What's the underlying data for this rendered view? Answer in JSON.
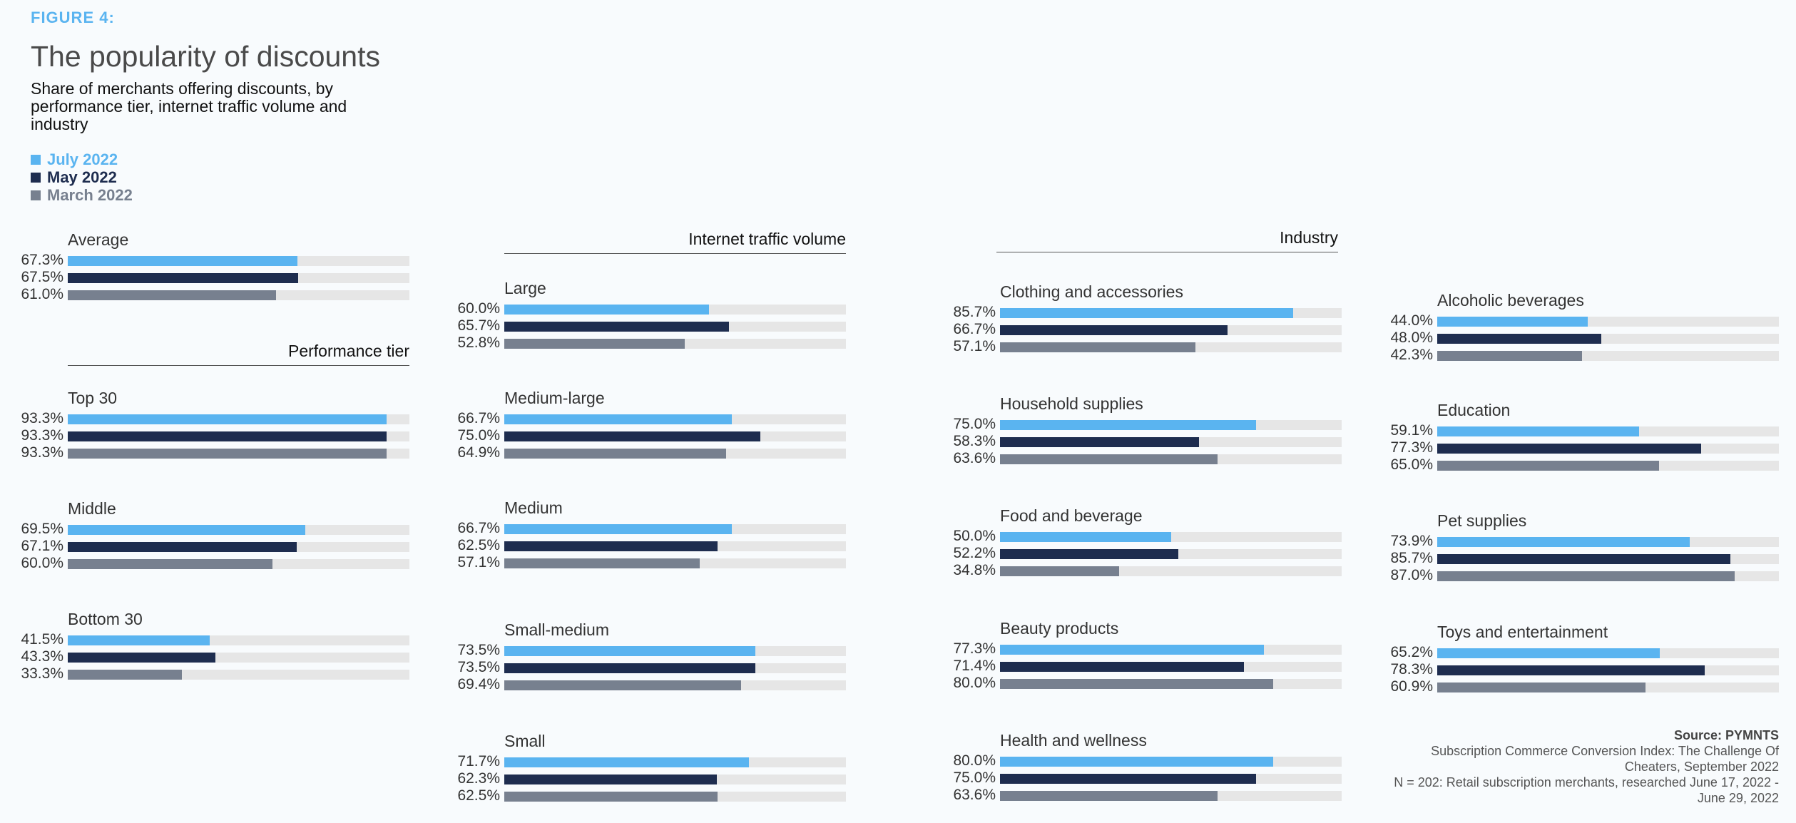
{
  "figure_label": "FIGURE 4:",
  "title": "The popularity of discounts",
  "subtitle": "Share of merchants offering discounts, by performance tier, internet traffic volume and industry",
  "colors": {
    "july": "#5ab4f0",
    "may": "#1e2d4f",
    "march": "#77808f",
    "track": "#e6e6e6"
  },
  "legend": [
    {
      "label": "July 2022",
      "color": "#5ab4f0"
    },
    {
      "label": "May 2022",
      "color": "#1e2d4f"
    },
    {
      "label": "March 2022",
      "color": "#77808f"
    }
  ],
  "sections": {
    "performance": "Performance tier",
    "traffic": "Internet traffic volume",
    "industry": "Industry"
  },
  "source": {
    "title": "Source: PYMNTS",
    "line1": "Subscription Commerce Conversion Index: The Challenge Of Cheaters, September 2022",
    "line2": "N = 202: Retail subscription merchants, researched June 17, 2022 - June 29, 2022"
  },
  "chart_data": {
    "type": "bar",
    "orientation": "horizontal",
    "unit": "%",
    "xlim": [
      0,
      100
    ],
    "series_names": [
      "July 2022",
      "May 2022",
      "March 2022"
    ],
    "groups": [
      {
        "category": "Average",
        "values": [
          67.3,
          67.5,
          61.0
        ],
        "labels": [
          "67.3%",
          "67.5%",
          "61.0%"
        ]
      },
      {
        "category": "Top 30",
        "values": [
          93.3,
          93.3,
          93.3
        ],
        "labels": [
          "93.3%",
          "93.3%",
          "93.3%"
        ]
      },
      {
        "category": "Middle",
        "values": [
          69.5,
          67.1,
          60.0
        ],
        "labels": [
          "69.5%",
          "67.1%",
          "60.0%"
        ]
      },
      {
        "category": "Bottom 30",
        "values": [
          41.5,
          43.3,
          33.3
        ],
        "labels": [
          "41.5%",
          "43.3%",
          "33.3%"
        ]
      },
      {
        "category": "Large",
        "values": [
          60.0,
          65.7,
          52.8
        ],
        "labels": [
          "60.0%",
          "65.7%",
          "52.8%"
        ]
      },
      {
        "category": "Medium-large",
        "values": [
          66.7,
          75.0,
          64.9
        ],
        "labels": [
          "66.7%",
          "75.0%",
          "64.9%"
        ]
      },
      {
        "category": "Medium",
        "values": [
          66.7,
          62.5,
          57.1
        ],
        "labels": [
          "66.7%",
          "62.5%",
          "57.1%"
        ]
      },
      {
        "category": "Small-medium",
        "values": [
          73.5,
          73.5,
          69.4
        ],
        "labels": [
          "73.5%",
          "73.5%",
          "69.4%"
        ]
      },
      {
        "category": "Small",
        "values": [
          71.7,
          62.3,
          62.5
        ],
        "labels": [
          "71.7%",
          "62.3%",
          "62.5%"
        ]
      },
      {
        "category": "Clothing and accessories",
        "values": [
          85.7,
          66.7,
          57.1
        ],
        "labels": [
          "85.7%",
          "66.7%",
          "57.1%"
        ]
      },
      {
        "category": "Household supplies",
        "values": [
          75.0,
          58.3,
          63.6
        ],
        "labels": [
          "75.0%",
          "58.3%",
          "63.6%"
        ]
      },
      {
        "category": "Food and beverage",
        "values": [
          50.0,
          52.2,
          34.8
        ],
        "labels": [
          "50.0%",
          "52.2%",
          "34.8%"
        ]
      },
      {
        "category": "Beauty products",
        "values": [
          77.3,
          71.4,
          80.0
        ],
        "labels": [
          "77.3%",
          "71.4%",
          "80.0%"
        ]
      },
      {
        "category": "Health and wellness",
        "values": [
          80.0,
          75.0,
          63.6
        ],
        "labels": [
          "80.0%",
          "75.0%",
          "63.6%"
        ]
      },
      {
        "category": "Alcoholic beverages",
        "values": [
          44.0,
          48.0,
          42.3
        ],
        "labels": [
          "44.0%",
          "48.0%",
          "42.3%"
        ]
      },
      {
        "category": "Education",
        "values": [
          59.1,
          77.3,
          65.0
        ],
        "labels": [
          "59.1%",
          "77.3%",
          "65.0%"
        ]
      },
      {
        "category": "Pet supplies",
        "values": [
          73.9,
          85.7,
          87.0
        ],
        "labels": [
          "73.9%",
          "85.7%",
          "87.0%"
        ]
      },
      {
        "category": "Toys and entertainment",
        "values": [
          65.2,
          78.3,
          60.9
        ],
        "labels": [
          "65.2%",
          "78.3%",
          "60.9%"
        ]
      }
    ]
  }
}
